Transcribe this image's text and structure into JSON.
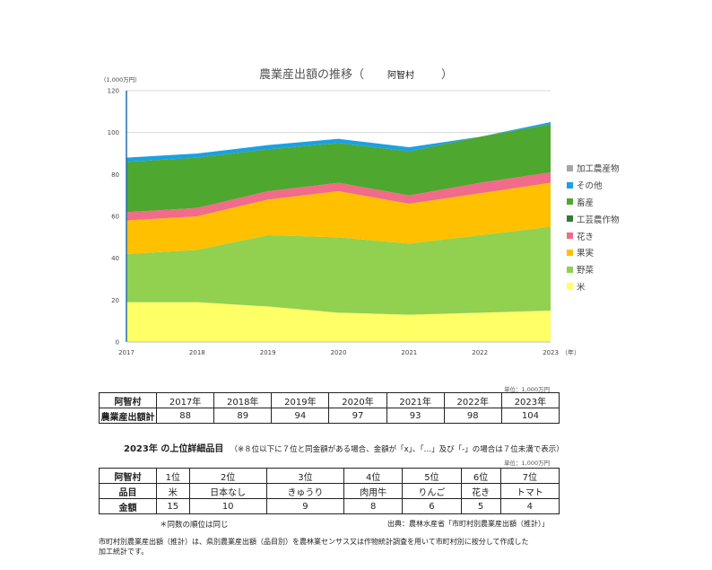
{
  "chart_data": {
    "type": "area",
    "title": "農業産出額の推移（",
    "title_place": "阿智村",
    "title_close": "）",
    "ylabel": "（1,000万円）",
    "xlabel_suffix": "（年）",
    "ylim": [
      0,
      120
    ],
    "yticks": [
      0,
      20,
      40,
      60,
      80,
      100,
      120
    ],
    "x": [
      "2017",
      "2018",
      "2019",
      "2020",
      "2021",
      "2022",
      "2023"
    ],
    "grid": true,
    "legend_position": "right",
    "series": [
      {
        "name": "米",
        "color": "#ffff66",
        "values": [
          19,
          19,
          17,
          14,
          13,
          14,
          15
        ]
      },
      {
        "name": "野菜",
        "color": "#92d050",
        "values": [
          23,
          25,
          34,
          36,
          34,
          37,
          40
        ]
      },
      {
        "name": "果実",
        "color": "#ffc000",
        "values": [
          16,
          16,
          17,
          22,
          19,
          20,
          21
        ]
      },
      {
        "name": "花き",
        "color": "#f26b8a",
        "values": [
          4,
          4,
          4,
          4,
          4,
          5,
          5
        ]
      },
      {
        "name": "工芸農作物",
        "color": "#2e7d32",
        "values": [
          0,
          0,
          0,
          0,
          0,
          0,
          0
        ]
      },
      {
        "name": "畜産",
        "color": "#4ea72e",
        "values": [
          24,
          24,
          20,
          19,
          21,
          22,
          23
        ]
      },
      {
        "name": "その他",
        "color": "#1ba1e2",
        "values": [
          2,
          2,
          2,
          2,
          2,
          0,
          1
        ]
      },
      {
        "name": "加工農産物",
        "color": "#a6a6a6",
        "values": [
          0,
          0,
          0,
          0,
          0,
          0,
          0
        ]
      }
    ]
  },
  "table1": {
    "unit": "単位：1,000万円",
    "corner": "阿智村",
    "years": [
      "2017年",
      "2018年",
      "2019年",
      "2020年",
      "2021年",
      "2022年",
      "2023年"
    ],
    "row_label": "農業産出額計",
    "values": [
      "88",
      "89",
      "94",
      "97",
      "93",
      "98",
      "104"
    ]
  },
  "ranking": {
    "heading": "2023年 の上位詳細品目",
    "note": "（※８位以下に７位と同金額がある場合、金額が「x」、「…」及び「-」の場合は７位未満で表示）",
    "unit": "単位：1,000万円",
    "corner": "阿智村",
    "ranks": [
      "1位",
      "2位",
      "3位",
      "4位",
      "5位",
      "6位",
      "7位"
    ],
    "item_label": "品目",
    "items": [
      "米",
      "日本なし",
      "きゅうり",
      "肉用牛",
      "りんご",
      "花き",
      "トマト"
    ],
    "amount_label": "金額",
    "amounts": [
      "15",
      "10",
      "9",
      "8",
      "6",
      "5",
      "4"
    ],
    "same_rank_note": "＊同数の順位は同じ",
    "source": "出典：農林水産省「市町村別農業産出額（推計）」"
  },
  "footer": {
    "line1": "市町村別農業産出額（推計）は、県別農業産出額（品目別）を農林業センサス又は作物統計調査を用いて市町村別に按分して作成した",
    "line2": "加工統計です。"
  }
}
